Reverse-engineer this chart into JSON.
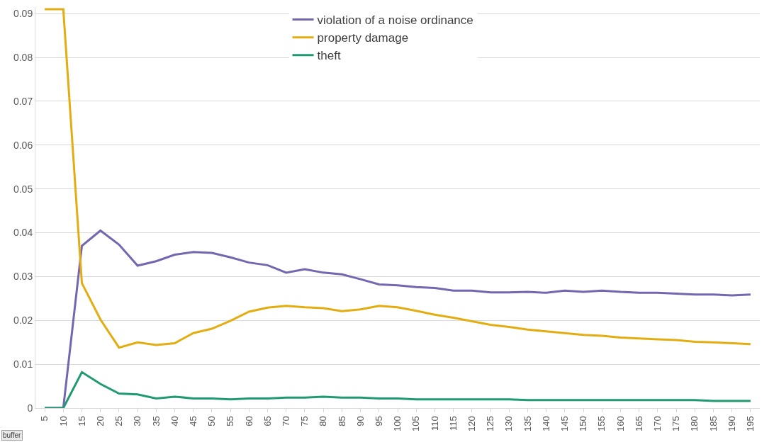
{
  "chart_data": {
    "type": "line",
    "categories": [
      "5",
      "10",
      "15",
      "20",
      "25",
      "30",
      "35",
      "40",
      "45",
      "50",
      "55",
      "60",
      "65",
      "70",
      "75",
      "80",
      "85",
      "90",
      "95",
      "100",
      "105",
      "110",
      "115",
      "120",
      "125",
      "130",
      "135",
      "140",
      "145",
      "150",
      "155",
      "160",
      "165",
      "170",
      "175",
      "180",
      "185",
      "190",
      "195"
    ],
    "series": [
      {
        "name": "violation of a noise ordinance",
        "color": "#7566b0",
        "values": [
          0,
          0,
          0.037,
          0.0405,
          0.0373,
          0.0325,
          0.0335,
          0.035,
          0.0356,
          0.0354,
          0.0344,
          0.0332,
          0.0326,
          0.0309,
          0.0317,
          0.0309,
          0.0305,
          0.0294,
          0.0282,
          0.028,
          0.0276,
          0.0274,
          0.0268,
          0.0268,
          0.0264,
          0.0264,
          0.0265,
          0.0263,
          0.0268,
          0.0265,
          0.0268,
          0.0265,
          0.0263,
          0.0263,
          0.0261,
          0.0259,
          0.0259,
          0.0257,
          0.0259
        ]
      },
      {
        "name": "property damage",
        "color": "#e3ad12",
        "values": [
          0.091,
          0.091,
          0.0285,
          0.0202,
          0.0138,
          0.015,
          0.0144,
          0.0148,
          0.0171,
          0.0181,
          0.0199,
          0.022,
          0.0229,
          0.0233,
          0.023,
          0.0228,
          0.0221,
          0.0225,
          0.0233,
          0.023,
          0.0222,
          0.0213,
          0.0206,
          0.0198,
          0.019,
          0.0185,
          0.0179,
          0.0175,
          0.0171,
          0.0167,
          0.0165,
          0.0161,
          0.0159,
          0.0157,
          0.0155,
          0.0151,
          0.015,
          0.0148,
          0.0146
        ]
      },
      {
        "name": "theft",
        "color": "#1f9a72",
        "values": [
          0,
          0,
          0.0082,
          0.0055,
          0.0033,
          0.0031,
          0.0022,
          0.0026,
          0.0022,
          0.0022,
          0.002,
          0.0022,
          0.0022,
          0.0024,
          0.0024,
          0.0026,
          0.0024,
          0.0024,
          0.0022,
          0.0022,
          0.002,
          0.002,
          0.002,
          0.002,
          0.002,
          0.002,
          0.0018,
          0.0018,
          0.0018,
          0.0018,
          0.0018,
          0.0018,
          0.0018,
          0.0018,
          0.0018,
          0.0018,
          0.0016,
          0.0016,
          0.0016
        ]
      }
    ],
    "ylim": [
      0,
      0.0915
    ],
    "yticks": [
      {
        "value": 0,
        "label": "0"
      },
      {
        "value": 0.01,
        "label": "0.01"
      },
      {
        "value": 0.02,
        "label": "0.02"
      },
      {
        "value": 0.03,
        "label": "0.03"
      },
      {
        "value": 0.04,
        "label": "0.04"
      },
      {
        "value": 0.05,
        "label": "0.05"
      },
      {
        "value": 0.06,
        "label": "0.06"
      },
      {
        "value": 0.07,
        "label": "0.07"
      },
      {
        "value": 0.08,
        "label": "0.08"
      },
      {
        "value": 0.09,
        "label": "0.09"
      }
    ],
    "grid": "y",
    "legend": "top",
    "marker": "none",
    "line_style": "solid",
    "annotations": [
      "buffer"
    ]
  }
}
